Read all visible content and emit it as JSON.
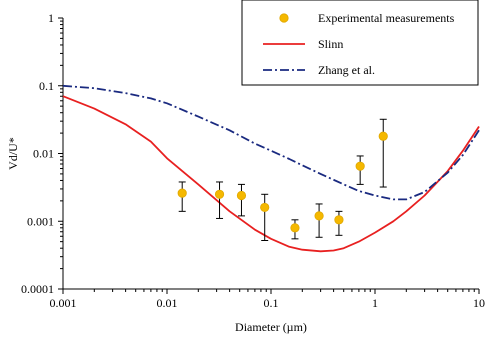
{
  "chart_data": {
    "type": "scatter",
    "xlabel": "Diameter (µm)",
    "ylabel": "Vd/U*",
    "xscale": "log",
    "yscale": "log",
    "xlim": [
      0.001,
      10
    ],
    "ylim": [
      0.0001,
      1
    ],
    "x_tick_labels": [
      "0.001",
      "0.01",
      "0.1",
      "1",
      "10"
    ],
    "y_tick_labels": [
      "1",
      "0.1",
      "0.01",
      "0.001",
      "0.0001"
    ],
    "grid": false,
    "legend_position": "top-right",
    "series": [
      {
        "name": "Experimental measurements",
        "kind": "points-with-error-bars",
        "color": "#F5B800",
        "points": [
          {
            "x": 0.014,
            "y": 0.0026,
            "ylow": 0.0014,
            "yhigh": 0.0038
          },
          {
            "x": 0.032,
            "y": 0.0025,
            "ylow": 0.0011,
            "yhigh": 0.0038
          },
          {
            "x": 0.052,
            "y": 0.0024,
            "ylow": 0.0012,
            "yhigh": 0.0035
          },
          {
            "x": 0.087,
            "y": 0.0016,
            "ylow": 0.00052,
            "yhigh": 0.0025
          },
          {
            "x": 0.17,
            "y": 0.0008,
            "ylow": 0.00055,
            "yhigh": 0.00105
          },
          {
            "x": 0.29,
            "y": 0.0012,
            "ylow": 0.00058,
            "yhigh": 0.0018
          },
          {
            "x": 0.45,
            "y": 0.00105,
            "ylow": 0.00062,
            "yhigh": 0.0014
          },
          {
            "x": 0.72,
            "y": 0.0065,
            "ylow": 0.0035,
            "yhigh": 0.0092
          },
          {
            "x": 1.2,
            "y": 0.018,
            "ylow": 0.0032,
            "yhigh": 0.032
          }
        ]
      },
      {
        "name": "Slinn",
        "kind": "line",
        "color": "#E82020",
        "dash": "solid",
        "x": [
          0.001,
          0.002,
          0.004,
          0.007,
          0.01,
          0.02,
          0.04,
          0.07,
          0.1,
          0.15,
          0.2,
          0.3,
          0.4,
          0.5,
          0.7,
          1,
          1.5,
          2,
          3,
          5,
          7,
          10
        ],
        "y": [
          0.07,
          0.046,
          0.027,
          0.015,
          0.0085,
          0.0035,
          0.0014,
          0.00075,
          0.00055,
          0.00042,
          0.00038,
          0.00036,
          0.00037,
          0.0004,
          0.0005,
          0.00068,
          0.001,
          0.0014,
          0.0024,
          0.0055,
          0.011,
          0.025
        ]
      },
      {
        "name": "Zhang et al.",
        "kind": "line",
        "color": "#1A2A80",
        "dash": "dashdot",
        "x": [
          0.001,
          0.002,
          0.004,
          0.007,
          0.01,
          0.02,
          0.04,
          0.07,
          0.1,
          0.15,
          0.2,
          0.3,
          0.5,
          0.7,
          1,
          1.5,
          2,
          3,
          5,
          7,
          10
        ],
        "y": [
          0.1,
          0.092,
          0.078,
          0.065,
          0.055,
          0.035,
          0.022,
          0.014,
          0.011,
          0.0083,
          0.0067,
          0.005,
          0.0035,
          0.0028,
          0.0024,
          0.0021,
          0.0021,
          0.0027,
          0.0052,
          0.0095,
          0.022
        ]
      }
    ]
  }
}
